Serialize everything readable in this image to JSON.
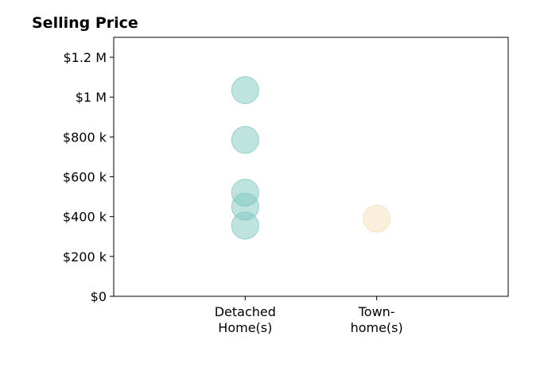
{
  "chart_data": {
    "type": "scatter",
    "title": "Selling Price",
    "xlabel": "",
    "ylabel": "",
    "categories": [
      {
        "lines": [
          "Detached",
          "Home(s)"
        ]
      },
      {
        "lines": [
          "Town-",
          "home(s)"
        ]
      }
    ],
    "y_ticks": [
      {
        "value": 0,
        "label": "$0"
      },
      {
        "value": 200000,
        "label": "$200 k"
      },
      {
        "value": 400000,
        "label": "$400 k"
      },
      {
        "value": 600000,
        "label": "$600 k"
      },
      {
        "value": 800000,
        "label": "$800 k"
      },
      {
        "value": 1000000,
        "label": "$1 M"
      },
      {
        "value": 1200000,
        "label": "$1.2 M"
      }
    ],
    "ylim": [
      0,
      1300000
    ],
    "xlim": [
      -1,
      2
    ],
    "grid": false,
    "legend": "none",
    "series": [
      {
        "category_index": 0,
        "color": "#7fc8c0",
        "values": [
          1035000,
          785000,
          520000,
          450000,
          355000
        ]
      },
      {
        "category_index": 1,
        "color": "#f4e0b5",
        "values": [
          390000
        ]
      }
    ]
  }
}
